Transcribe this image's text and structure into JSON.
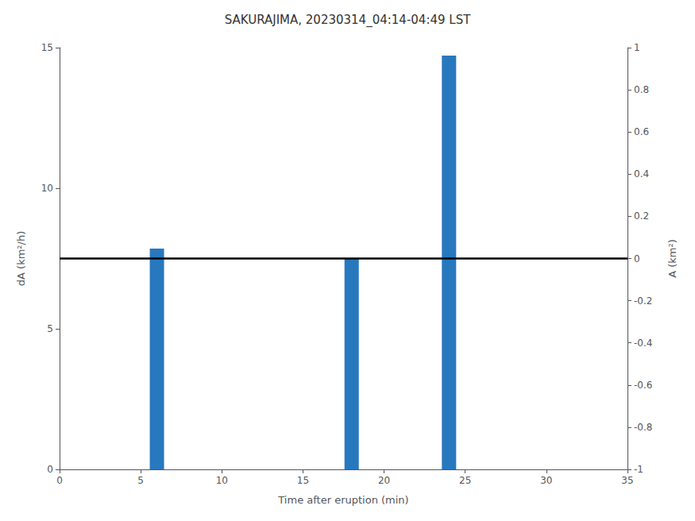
{
  "chart_data": {
    "type": "bar",
    "title": "SAKURAJIMA, 20230314_04:14-04:49 LST",
    "x": [
      6,
      18,
      24
    ],
    "values": [
      7.85,
      7.5,
      14.72
    ],
    "color": "#2878BE",
    "xlabel": "Time after eruption (min)",
    "ylabel": "dA (km²/h)",
    "y2label": "A (km²)",
    "xlim": [
      0,
      35
    ],
    "xticks": [
      0,
      5,
      10,
      15,
      20,
      25,
      30,
      35
    ],
    "ylim": [
      0,
      15
    ],
    "yticks": [
      0,
      5,
      10,
      15
    ],
    "y2lim": [
      -1,
      1
    ],
    "y2ticks": [
      -1,
      -0.8,
      -0.6,
      -0.4,
      -0.2,
      0,
      0.2,
      0.4,
      0.6,
      0.8,
      1
    ],
    "hline": {
      "y": 7.5,
      "color": "black"
    },
    "grid": false
  }
}
